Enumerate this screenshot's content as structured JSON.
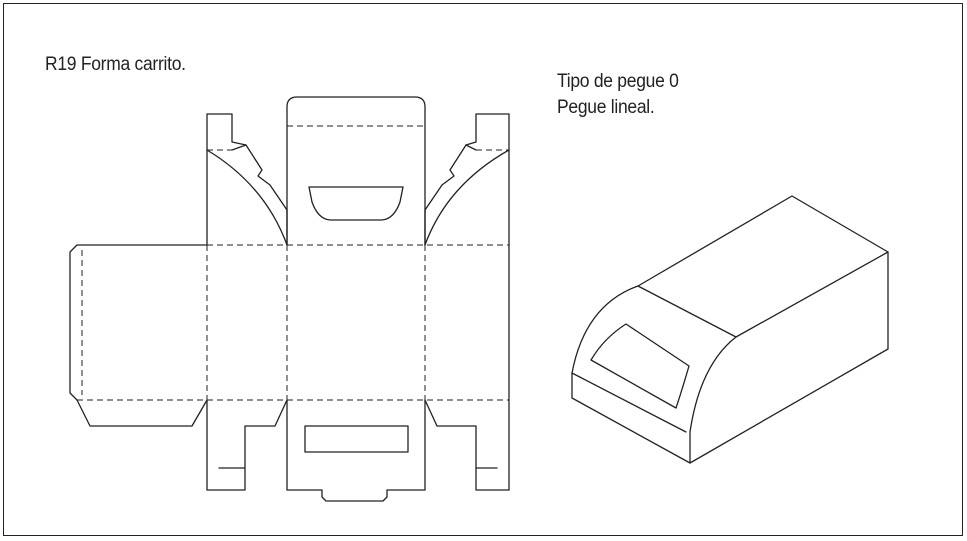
{
  "title": "R19 Forma carrito.",
  "spec": {
    "line1": "Tipo de pegue 0",
    "line2": "Pegue lineal."
  }
}
